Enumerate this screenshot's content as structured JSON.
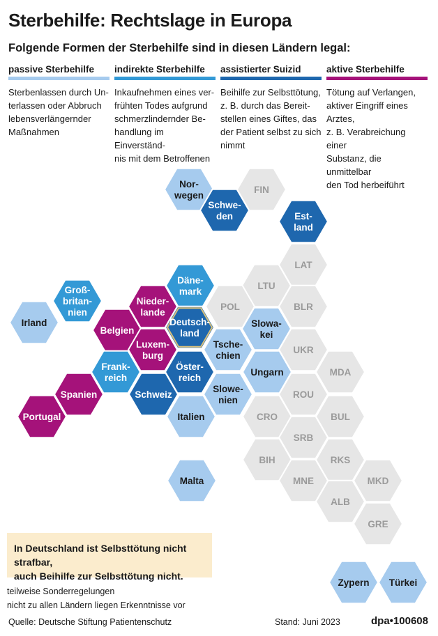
{
  "title": "Sterbehilfe: Rechtslage in Europa",
  "subtitle": "Folgende Formen der Sterbehilfe sind in diesen Ländern legal:",
  "colors": {
    "passiv": "#a6cbee",
    "indirekt": "#3399d6",
    "assistiert": "#1e67ae",
    "aktiv": "#a5127a",
    "none": "#e6e6e6",
    "dark_text": "#1a1a1a",
    "grey_text": "#9a9a9a",
    "note_bg": "#fbeccd"
  },
  "legend": [
    {
      "key": "passiv",
      "label": "passive Sterbehilfe",
      "lines": [
        "Sterbenlassen durch Un-",
        "terlassen oder Abbruch",
        "lebensverlängernder",
        "Maßnahmen"
      ]
    },
    {
      "key": "indirekt",
      "label": "indirekte Sterbehilfe",
      "lines": [
        "Inkaufnehmen eines ver-",
        "frühten Todes aufgrund",
        "schmerzlindernder Be-",
        "handlung im Einverständ-",
        "nis mit dem Betroffenen"
      ]
    },
    {
      "key": "assistiert",
      "label": "assistierter Suizid",
      "lines": [
        "Beihilfe zur Selbsttötung,",
        "z. B. durch das Bereit-",
        "stellen eines Giftes, das",
        "der Patient selbst zu sich",
        "nimmt"
      ]
    },
    {
      "key": "aktiv",
      "label": "aktive Sterbehilfe",
      "lines": [
        "Tötung auf Verlangen,",
        "aktiver Eingriff eines Arztes,",
        "z. B. Verabreichung einer",
        "Substanz, die unmittelbar",
        "den Tod herbeiführt"
      ]
    }
  ],
  "countries": [
    {
      "name": "Norwegen",
      "lines": [
        "Nor-",
        "wegen"
      ],
      "cat": "passiv"
    },
    {
      "name": "FIN",
      "lines": [
        "FIN"
      ],
      "cat": "none"
    },
    {
      "name": "Schweden",
      "lines": [
        "Schwe-",
        "den"
      ],
      "cat": "assistiert"
    },
    {
      "name": "Estland",
      "lines": [
        "Est-",
        "land"
      ],
      "cat": "assistiert"
    },
    {
      "name": "LAT",
      "lines": [
        "LAT"
      ],
      "cat": "none"
    },
    {
      "name": "Großbritannien",
      "lines": [
        "Groß-",
        "britan-",
        "nien"
      ],
      "cat": "indirekt"
    },
    {
      "name": "Dänemark",
      "lines": [
        "Däne-",
        "mark"
      ],
      "cat": "indirekt"
    },
    {
      "name": "LTU",
      "lines": [
        "LTU"
      ],
      "cat": "none"
    },
    {
      "name": "Irland",
      "lines": [
        "Irland"
      ],
      "cat": "passiv"
    },
    {
      "name": "Niederlande",
      "lines": [
        "Nieder-",
        "lande"
      ],
      "cat": "aktiv"
    },
    {
      "name": "POL",
      "lines": [
        "POL"
      ],
      "cat": "none"
    },
    {
      "name": "BLR",
      "lines": [
        "BLR"
      ],
      "cat": "none"
    },
    {
      "name": "Belgien",
      "lines": [
        "Belgien"
      ],
      "cat": "aktiv"
    },
    {
      "name": "Deutschland",
      "lines": [
        "Deutsch-",
        "land"
      ],
      "cat": "assistiert",
      "outline": true
    },
    {
      "name": "Slowakei",
      "lines": [
        "Slowa-",
        "kei"
      ],
      "cat": "passiv"
    },
    {
      "name": "Luxemburg",
      "lines": [
        "Luxem-",
        "burg"
      ],
      "cat": "aktiv"
    },
    {
      "name": "Tschechien",
      "lines": [
        "Tsche-",
        "chien"
      ],
      "cat": "passiv"
    },
    {
      "name": "UKR",
      "lines": [
        "UKR"
      ],
      "cat": "none"
    },
    {
      "name": "Frankreich",
      "lines": [
        "Frank-",
        "reich"
      ],
      "cat": "indirekt"
    },
    {
      "name": "Österreich",
      "lines": [
        "Öster-",
        "reich"
      ],
      "cat": "assistiert"
    },
    {
      "name": "Ungarn",
      "lines": [
        "Ungarn"
      ],
      "cat": "passiv"
    },
    {
      "name": "MDA",
      "lines": [
        "MDA"
      ],
      "cat": "none"
    },
    {
      "name": "Spanien",
      "lines": [
        "Spanien"
      ],
      "cat": "aktiv"
    },
    {
      "name": "Schweiz",
      "lines": [
        "Schweiz"
      ],
      "cat": "assistiert"
    },
    {
      "name": "Slowenien",
      "lines": [
        "Slowe-",
        "nien"
      ],
      "cat": "passiv"
    },
    {
      "name": "ROU",
      "lines": [
        "ROU"
      ],
      "cat": "none"
    },
    {
      "name": "Portugal",
      "lines": [
        "Portugal"
      ],
      "cat": "aktiv"
    },
    {
      "name": "Italien",
      "lines": [
        "Italien"
      ],
      "cat": "passiv"
    },
    {
      "name": "CRO",
      "lines": [
        "CRO"
      ],
      "cat": "none"
    },
    {
      "name": "BUL",
      "lines": [
        "BUL"
      ],
      "cat": "none"
    },
    {
      "name": "SRB",
      "lines": [
        "SRB"
      ],
      "cat": "none"
    },
    {
      "name": "BIH",
      "lines": [
        "BIH"
      ],
      "cat": "none"
    },
    {
      "name": "RKS",
      "lines": [
        "RKS"
      ],
      "cat": "none"
    },
    {
      "name": "Malta",
      "lines": [
        "Malta"
      ],
      "cat": "passiv"
    },
    {
      "name": "MNE",
      "lines": [
        "MNE"
      ],
      "cat": "none"
    },
    {
      "name": "MKD",
      "lines": [
        "MKD"
      ],
      "cat": "none"
    },
    {
      "name": "ALB",
      "lines": [
        "ALB"
      ],
      "cat": "none"
    },
    {
      "name": "GRE",
      "lines": [
        "GRE"
      ],
      "cat": "none"
    },
    {
      "name": "Zypern",
      "lines": [
        "Zypern"
      ],
      "cat": "passiv"
    },
    {
      "name": "Türkei",
      "lines": [
        "Türkei"
      ],
      "cat": "passiv"
    }
  ],
  "note": [
    "In Deutschland ist Selbsttötung nicht strafbar,",
    "auch Beihilfe zur Selbsttötung nicht."
  ],
  "key": {
    "partial": "teilweise Sonderregelungen",
    "no_data": "nicht zu allen Ländern liegen Erkenntnisse vor"
  },
  "footer": {
    "source": "Quelle: Deutsche Stiftung Patientenschutz",
    "date": "Stand: Juni 2023",
    "brand": "dpa•100608"
  }
}
